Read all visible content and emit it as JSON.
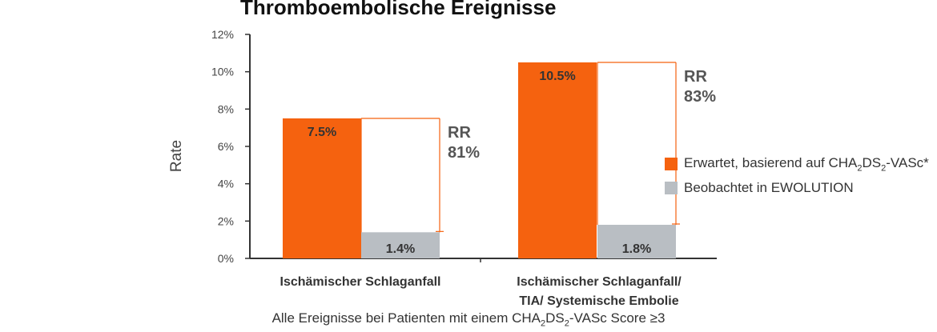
{
  "chart_data": {
    "type": "bar",
    "title": "Thromboembolische Ereignisse",
    "ylabel": "Rate",
    "xlabel": "",
    "ylim": [
      0,
      12
    ],
    "yticks": [
      "0%",
      "2%",
      "4%",
      "6%",
      "8%",
      "10%",
      "12%"
    ],
    "ytick_values": [
      0,
      2,
      4,
      6,
      8,
      10,
      12
    ],
    "categories": [
      [
        "Ischämischer Schlaganfall"
      ],
      [
        "Ischämischer Schlaganfall/",
        "TIA/ Systemische Embolie"
      ]
    ],
    "series": [
      {
        "name": "Erwartet, basierend auf CHA₂DS₂-VASc*",
        "values": [
          7.5,
          10.5
        ],
        "labels": [
          "7.5%",
          "10.5%"
        ],
        "color": "#f5620f"
      },
      {
        "name": "Beobachtet in EWOLUTION",
        "values": [
          1.4,
          1.8
        ],
        "labels": [
          "1.4%",
          "1.8%"
        ],
        "color": "#b9bec3"
      }
    ],
    "annotations": [
      {
        "line1": "RR",
        "line2": "81%"
      },
      {
        "line1": "RR",
        "line2": "83%"
      }
    ],
    "legend_position": "right",
    "grid": false,
    "footnote": "Alle Ereignisse bei Patienten mit einem CHA₂DS₂-VASc Score ≥3"
  },
  "legend": {
    "expected": {
      "prefix": "Erwartet, basierend auf CHA",
      "sub1": "2",
      "mid": "DS",
      "sub2": "2",
      "suffix": "-VASc*"
    },
    "observed": {
      "label": "Beobachtet in EWOLUTION"
    }
  },
  "footnote_parts": {
    "prefix": "Alle Ereignisse bei Patienten mit einem CHA",
    "sub1": "2",
    "mid": "DS",
    "sub2": "2",
    "suffix": "-VASc Score ≥3"
  },
  "colors": {
    "expected": "#f5620f",
    "observed": "#b9bec3",
    "axis": "#333333",
    "text": "#4a4a4a"
  }
}
